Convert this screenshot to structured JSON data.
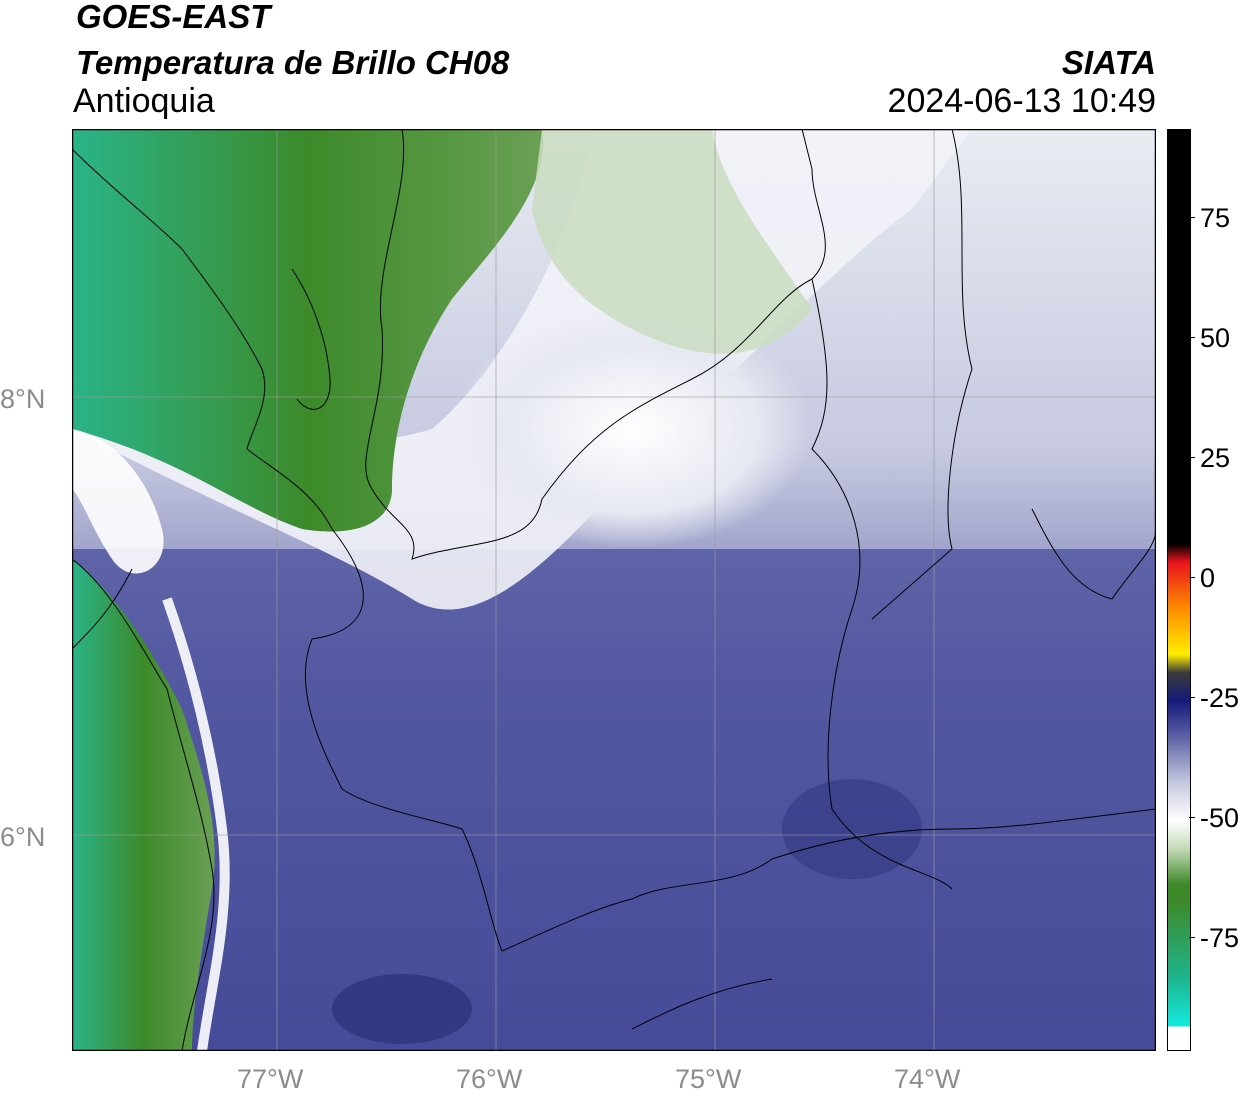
{
  "header": {
    "title_line1": "GOES-EAST",
    "title_line2": "Temperatura de Brillo CH08",
    "region": "Antioquia",
    "source": "SIATA",
    "datetime": "2024-06-13 10:49"
  },
  "map": {
    "lat_labels": [
      "8°N",
      "6°N"
    ],
    "lon_labels": [
      "77°W",
      "76°W",
      "75°W",
      "74°W"
    ],
    "gridlines": true
  },
  "colorbar": {
    "tick_labels": [
      "75",
      "50",
      "25",
      "0",
      "-25",
      "-50",
      "-75"
    ],
    "colors": {
      "black": "#000000",
      "red": "#e8141c",
      "orange": "#ff8c00",
      "yellow": "#ffee00",
      "navy": "#151a7a",
      "slate": "#4a4f9c",
      "white": "#ffffff",
      "green": "#3e8a2a",
      "teal": "#1fb48c",
      "cyan": "#14e8dc"
    }
  }
}
